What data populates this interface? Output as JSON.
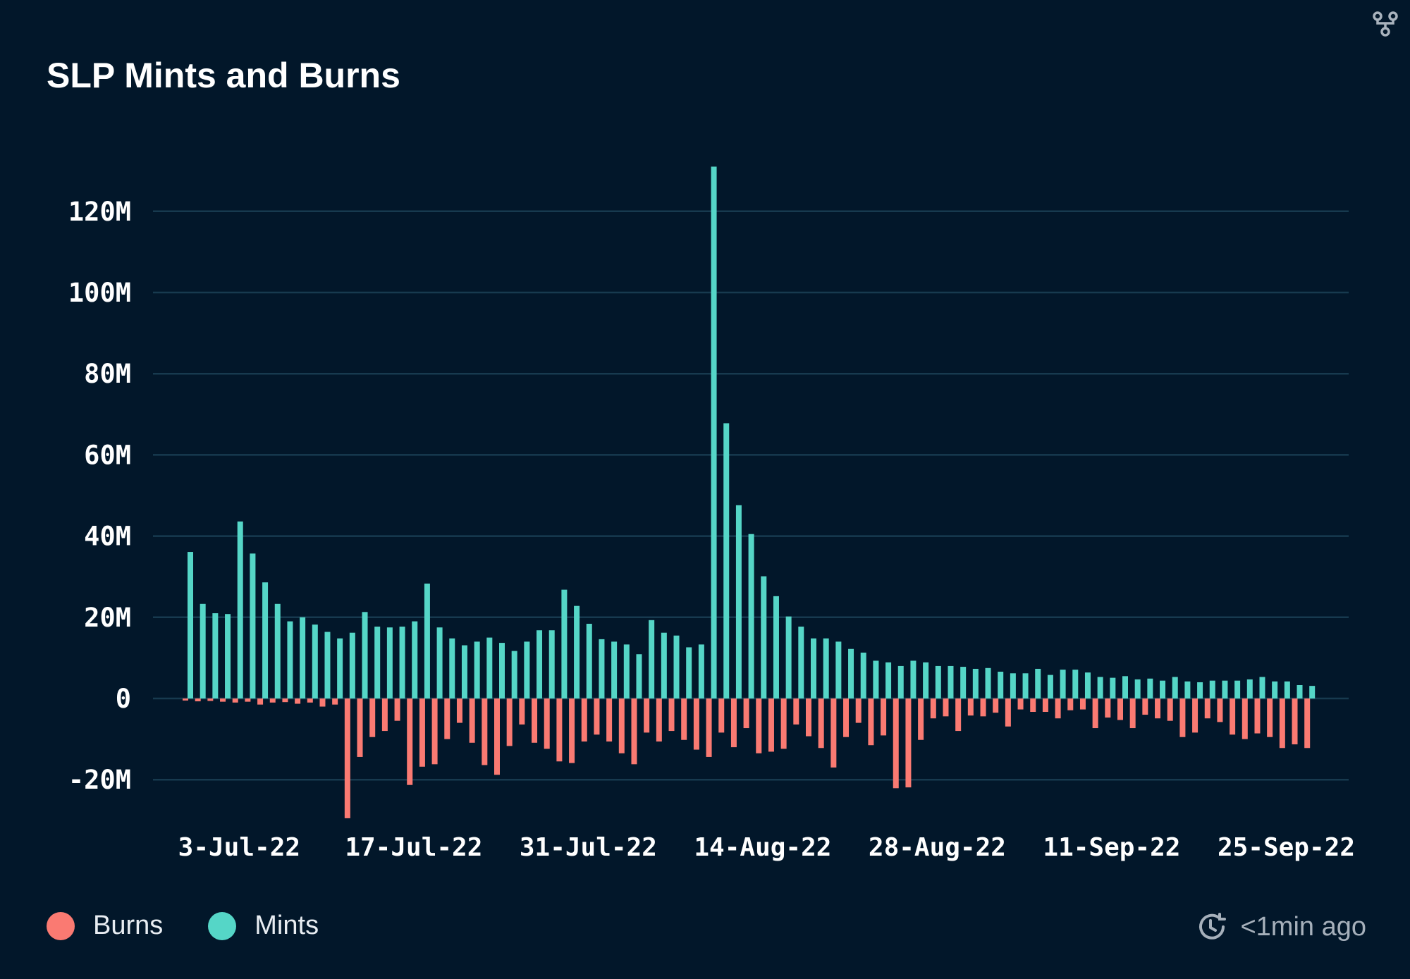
{
  "title": "SLP Mints and Burns",
  "updated": "<1min ago",
  "icons": {
    "top_right": "fork-icon",
    "updated": "clock-refresh-icon"
  },
  "chart_data": {
    "type": "bar",
    "title": "SLP Mints and Burns",
    "xlabel": "",
    "ylabel": "",
    "x_start": "2022-07-01",
    "x_end": "2022-09-29",
    "x_ticks": [
      "3-Jul-22",
      "17-Jul-22",
      "31-Jul-22",
      "14-Aug-22",
      "28-Aug-22",
      "11-Sep-22",
      "25-Sep-22"
    ],
    "y_ticks": [
      -20,
      0,
      20,
      40,
      60,
      80,
      100,
      120
    ],
    "y_tick_labels": [
      "-20M",
      "0",
      "20M",
      "40M",
      "60M",
      "80M",
      "100M",
      "120M"
    ],
    "ylim": [
      -30,
      132
    ],
    "unit": "M",
    "grid": true,
    "legend": "bottom-left",
    "series": [
      {
        "name": "Burns",
        "color": "#fa7a72",
        "values": [
          -0.5,
          -0.7,
          -0.6,
          -0.8,
          -1,
          -0.8,
          -1.5,
          -1,
          -0.9,
          -1.3,
          -1,
          -2,
          -1.5,
          -29.5,
          -14.4,
          -9.5,
          -8,
          -5.5,
          -21.3,
          -16.8,
          -16.2,
          -10,
          -6,
          -10.9,
          -16.4,
          -18.8,
          -11.7,
          -6.4,
          -10.9,
          -12.4,
          -15.5,
          -15.9,
          -10.6,
          -8.9,
          -10.6,
          -13.5,
          -16.2,
          -8.4,
          -10.6,
          -8,
          -10.2,
          -12.6,
          -14.4,
          -8.4,
          -12,
          -7.3,
          -13.5,
          -13.1,
          -12.4,
          -6.4,
          -9.3,
          -12.2,
          -17,
          -9.5,
          -6,
          -11.5,
          -9.1,
          -22.1,
          -21.9,
          -10.2,
          -4.9,
          -4.4,
          -8,
          -4.2,
          -4.4,
          -3.5,
          -6.9,
          -2.7,
          -3.3,
          -3.3,
          -4.9,
          -2.9,
          -2.7,
          -7.3,
          -4.7,
          -5.3,
          -7.3,
          -4,
          -4.9,
          -5.5,
          -9.5,
          -8.4,
          -4.9,
          -5.8,
          -8.9,
          -10,
          -8.6,
          -9.5,
          -12.2,
          -11.3,
          -12.2
        ]
      },
      {
        "name": "Mints",
        "color": "#55d6c7",
        "values": [
          36.1,
          23.3,
          21,
          20.8,
          43.6,
          35.7,
          28.6,
          23.3,
          19,
          20,
          18.2,
          16.4,
          14.8,
          16.2,
          21.3,
          17.7,
          17.5,
          17.7,
          19,
          28.3,
          17.5,
          14.8,
          13.1,
          14,
          15,
          13.7,
          11.7,
          14,
          16.8,
          16.8,
          26.8,
          22.8,
          18.4,
          14.6,
          14,
          13.3,
          10.9,
          19.3,
          16.2,
          15.5,
          12.6,
          13.3,
          131,
          67.8,
          47.6,
          40.5,
          30.1,
          25.2,
          20.2,
          17.7,
          14.8,
          14.8,
          14,
          12.2,
          11.3,
          9.3,
          8.9,
          8,
          9.3,
          8.9,
          8,
          8,
          7.8,
          7.3,
          7.5,
          6.6,
          6.2,
          6.2,
          7.3,
          5.8,
          7.1,
          7.1,
          6.4,
          5.3,
          5.1,
          5.5,
          4.7,
          4.9,
          4.4,
          5.3,
          4.2,
          4,
          4.4,
          4.4,
          4.4,
          4.7,
          5.3,
          4.2,
          4.2,
          3.3,
          3.1
        ]
      }
    ]
  }
}
